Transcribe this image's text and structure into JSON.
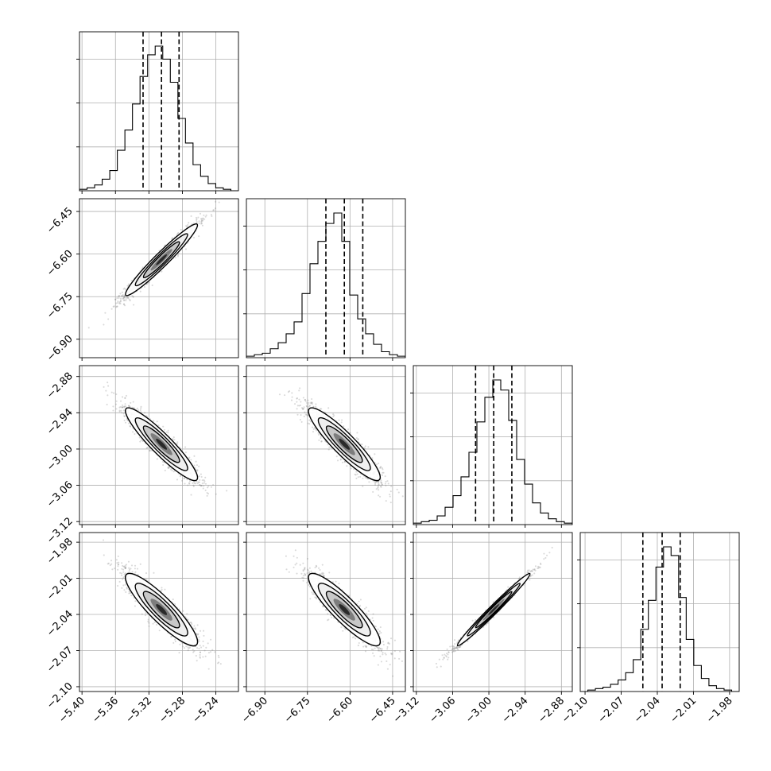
{
  "chart_data": {
    "type": "corner",
    "parameters": [
      {
        "ticks": [
          -5.4,
          -5.36,
          -5.32,
          -5.28,
          -5.24
        ],
        "tick_labels": [
          "−5.40",
          "−5.36",
          "−5.32",
          "−5.28",
          "−5.24"
        ],
        "range": [
          -5.403,
          -5.213
        ],
        "mean": -5.305,
        "sd": 0.0215,
        "quantiles": [
          -5.327,
          -5.305,
          -5.284
        ],
        "hist_counts": [
          1,
          2,
          4,
          8,
          14,
          28,
          42,
          60,
          79,
          94,
          100,
          91,
          75,
          50,
          33,
          18,
          10,
          5,
          2,
          1,
          0
        ]
      },
      {
        "ticks": [
          -6.9,
          -6.75,
          -6.6,
          -6.45
        ],
        "tick_labels": [
          "−6.90",
          "−6.75",
          "−6.60",
          "−6.45"
        ],
        "range": [
          -6.965,
          -6.405
        ],
        "mean": -6.62,
        "sd": 0.063,
        "quantiles": [
          -6.685,
          -6.62,
          -6.555
        ],
        "hist_counts": [
          1,
          2,
          3,
          6,
          10,
          16,
          24,
          43,
          63,
          78,
          90,
          97,
          78,
          42,
          26,
          16,
          9,
          4,
          2,
          1
        ]
      },
      {
        "ticks": [
          -3.12,
          -3.06,
          -3.0,
          -2.94,
          -2.88
        ],
        "tick_labels": [
          "−3.12",
          "−3.06",
          "−3.00",
          "−2.94",
          "−2.88"
        ],
        "range": [
          -3.125,
          -2.862
        ],
        "mean": -2.992,
        "sd": 0.03,
        "quantiles": [
          -3.022,
          -2.992,
          -2.962
        ],
        "hist_counts": [
          1,
          2,
          3,
          6,
          12,
          20,
          33,
          50,
          71,
          88,
          100,
          93,
          72,
          45,
          28,
          15,
          8,
          4,
          2,
          1
        ]
      },
      {
        "ticks": [
          -2.1,
          -2.07,
          -2.04,
          -2.01,
          -1.98
        ],
        "tick_labels": [
          "−2.10",
          "−2.07",
          "−2.04",
          "−2.01",
          "−1.98"
        ],
        "range": [
          -2.104,
          -1.972
        ],
        "mean": -2.036,
        "sd": 0.015,
        "quantiles": [
          -2.052,
          -2.036,
          -2.021
        ],
        "hist_counts": [
          0,
          1,
          2,
          3,
          5,
          8,
          13,
          22,
          43,
          63,
          86,
          100,
          94,
          65,
          36,
          18,
          9,
          4,
          2,
          1,
          0
        ]
      }
    ],
    "correlations": [
      [
        1.0,
        0.97,
        -0.93,
        -0.9
      ],
      [
        0.97,
        1.0,
        -0.92,
        -0.9
      ],
      [
        -0.93,
        -0.92,
        1.0,
        0.99
      ],
      [
        -0.9,
        -0.9,
        0.99,
        1.0
      ]
    ],
    "grid": true,
    "title": "",
    "axis_labels": [
      "",
      "",
      "",
      ""
    ]
  }
}
